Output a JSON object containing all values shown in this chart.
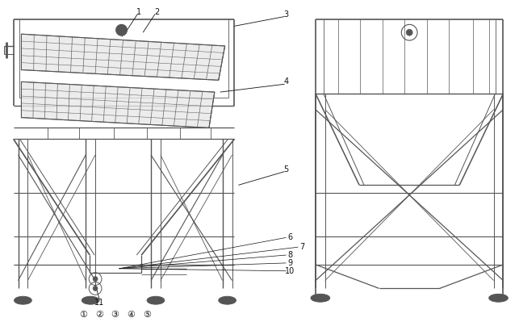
{
  "bg_color": "#ffffff",
  "line_color": "#555555",
  "label_color": "#111111",
  "figsize": [
    6.43,
    3.99
  ],
  "dpi": 100,
  "circle_labels": [
    "①",
    "②",
    "③",
    "④",
    "⑤"
  ]
}
